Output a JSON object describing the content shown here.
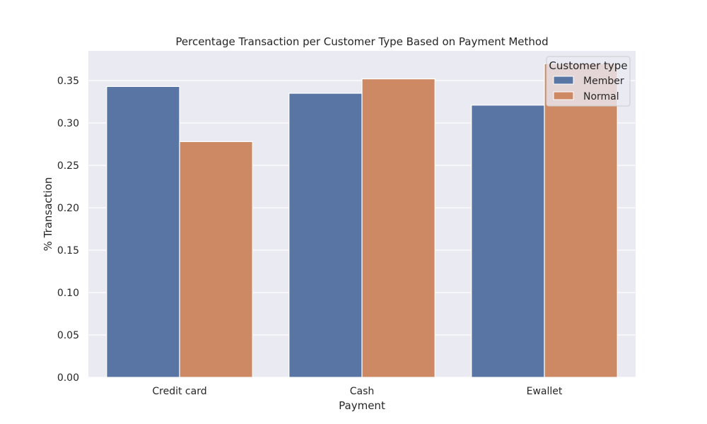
{
  "chart_data": {
    "type": "bar",
    "title": "Percentage Transaction per Customer Type Based on Payment Method",
    "xlabel": "Payment",
    "ylabel": "% Transaction",
    "categories": [
      "Credit card",
      "Cash",
      "Ewallet"
    ],
    "series": [
      {
        "name": "Member",
        "values": [
          0.343,
          0.335,
          0.321
        ]
      },
      {
        "name": "Normal",
        "values": [
          0.278,
          0.352,
          0.37
        ]
      }
    ],
    "ylim": [
      0,
      0.385
    ],
    "yticks": [
      "0.00",
      "0.05",
      "0.10",
      "0.15",
      "0.20",
      "0.25",
      "0.30",
      "0.35"
    ],
    "grid": true,
    "legend": {
      "title": "Customer type",
      "placement": "top-right"
    },
    "colors": {
      "Member": "#5975a4",
      "Normal": "#cc8963",
      "background": "#eaeaf2",
      "grid": "#ffffff"
    }
  }
}
